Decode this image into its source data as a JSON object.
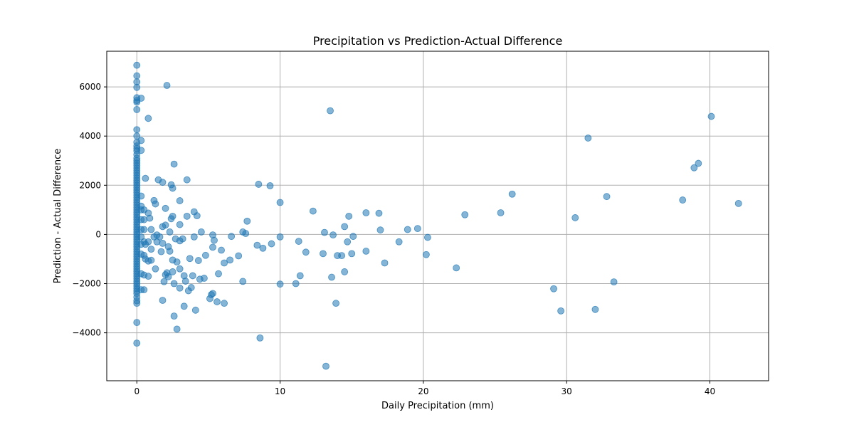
{
  "chart_data": {
    "type": "scatter",
    "title": "Precipitation vs Prediction-Actual Difference",
    "xlabel": "Daily Precipitation (mm)",
    "ylabel": "Prediction - Actual Difference",
    "xlim": [
      -2.1,
      44.1
    ],
    "ylim": [
      -5950,
      7450
    ],
    "xticks": [
      0,
      10,
      20,
      30,
      40
    ],
    "xtick_labels": [
      "0",
      "10",
      "20",
      "30",
      "40"
    ],
    "yticks": [
      -4000,
      -2000,
      0,
      2000,
      4000,
      6000
    ],
    "ytick_labels": [
      "−4000",
      "−2000",
      "0",
      "2000",
      "4000",
      "6000"
    ],
    "grid": true,
    "marker_color": "#1f77b4",
    "marker_alpha": 0.55,
    "series": [
      {
        "points": [
          [
            0,
            6880
          ],
          [
            0,
            6450
          ],
          [
            0,
            6200
          ],
          [
            0,
            5980
          ],
          [
            0,
            5560
          ],
          [
            0,
            5450
          ],
          [
            0,
            5380
          ],
          [
            0,
            5080
          ],
          [
            0,
            4260
          ],
          [
            0,
            4000
          ],
          [
            0,
            3750
          ],
          [
            0,
            3600
          ],
          [
            0,
            3500
          ],
          [
            0,
            3400
          ],
          [
            0,
            3250
          ],
          [
            0,
            3100
          ],
          [
            0,
            3000
          ],
          [
            0,
            2900
          ],
          [
            0,
            2800
          ],
          [
            0,
            2700
          ],
          [
            0,
            2600
          ],
          [
            0,
            2500
          ],
          [
            0,
            2400
          ],
          [
            0,
            2300
          ],
          [
            0,
            2200
          ],
          [
            0,
            2100
          ],
          [
            0,
            2000
          ],
          [
            0,
            1900
          ],
          [
            0,
            1800
          ],
          [
            0,
            1700
          ],
          [
            0,
            1600
          ],
          [
            0,
            1500
          ],
          [
            0,
            1400
          ],
          [
            0,
            1300
          ],
          [
            0,
            1200
          ],
          [
            0,
            1100
          ],
          [
            0,
            1000
          ],
          [
            0,
            900
          ],
          [
            0,
            800
          ],
          [
            0,
            700
          ],
          [
            0,
            600
          ],
          [
            0,
            500
          ],
          [
            0,
            400
          ],
          [
            0,
            300
          ],
          [
            0,
            200
          ],
          [
            0,
            100
          ],
          [
            0,
            0
          ],
          [
            0,
            -100
          ],
          [
            0,
            -200
          ],
          [
            0,
            -300
          ],
          [
            0,
            -400
          ],
          [
            0,
            -500
          ],
          [
            0,
            -600
          ],
          [
            0,
            -700
          ],
          [
            0,
            -800
          ],
          [
            0,
            -900
          ],
          [
            0,
            -1000
          ],
          [
            0,
            -1100
          ],
          [
            0,
            -1200
          ],
          [
            0,
            -1300
          ],
          [
            0,
            -1400
          ],
          [
            0,
            -1500
          ],
          [
            0,
            -1600
          ],
          [
            0,
            -1700
          ],
          [
            0,
            -1800
          ],
          [
            0,
            -1900
          ],
          [
            0,
            -2000
          ],
          [
            0,
            -2100
          ],
          [
            0,
            -2200
          ],
          [
            0,
            -2300
          ],
          [
            0,
            -2400
          ],
          [
            0,
            -2550
          ],
          [
            0,
            -2700
          ],
          [
            0,
            -2800
          ],
          [
            0,
            -3580
          ],
          [
            0,
            -4420
          ],
          [
            0.3,
            5540
          ],
          [
            0.3,
            3820
          ],
          [
            0.3,
            3420
          ],
          [
            0.3,
            1560
          ],
          [
            0.3,
            1150
          ],
          [
            0.3,
            1000
          ],
          [
            0.3,
            600
          ],
          [
            0.3,
            200
          ],
          [
            0.3,
            -100
          ],
          [
            0.3,
            -400
          ],
          [
            0.3,
            -800
          ],
          [
            0.3,
            -1600
          ],
          [
            0.3,
            -2250
          ],
          [
            0.5,
            1000
          ],
          [
            0.5,
            600
          ],
          [
            0.5,
            200
          ],
          [
            0.5,
            -300
          ],
          [
            0.5,
            -850
          ],
          [
            0.5,
            -1650
          ],
          [
            0.5,
            -2250
          ],
          [
            0.6,
            2280
          ],
          [
            0.6,
            -400
          ],
          [
            0.6,
            -1000
          ],
          [
            0.8,
            4720
          ],
          [
            0.8,
            870
          ],
          [
            0.8,
            -300
          ],
          [
            0.8,
            -1080
          ],
          [
            0.8,
            -1700
          ],
          [
            0.9,
            660
          ],
          [
            1.0,
            200
          ],
          [
            1.0,
            -600
          ],
          [
            1.0,
            -1050
          ],
          [
            1.2,
            1380
          ],
          [
            1.2,
            -100
          ],
          [
            1.3,
            1240
          ],
          [
            1.3,
            -1400
          ],
          [
            1.4,
            -300
          ],
          [
            1.4,
            -20
          ],
          [
            1.5,
            2220
          ],
          [
            1.6,
            -100
          ],
          [
            1.7,
            -700
          ],
          [
            1.8,
            2120
          ],
          [
            1.8,
            320
          ],
          [
            1.8,
            -360
          ],
          [
            1.8,
            -2680
          ],
          [
            1.9,
            -1920
          ],
          [
            2.0,
            1060
          ],
          [
            2.0,
            380
          ],
          [
            2.0,
            -1640
          ],
          [
            2.1,
            6060
          ],
          [
            2.1,
            -1560
          ],
          [
            2.2,
            -1720
          ],
          [
            2.2,
            -500
          ],
          [
            2.3,
            -680
          ],
          [
            2.3,
            100
          ],
          [
            2.4,
            640
          ],
          [
            2.4,
            2020
          ],
          [
            2.5,
            1880
          ],
          [
            2.5,
            -1040
          ],
          [
            2.5,
            -1520
          ],
          [
            2.5,
            740
          ],
          [
            2.6,
            2860
          ],
          [
            2.6,
            -2000
          ],
          [
            2.6,
            -3320
          ],
          [
            2.7,
            -180
          ],
          [
            2.8,
            -3850
          ],
          [
            2.8,
            -1120
          ],
          [
            3.0,
            1370
          ],
          [
            3.0,
            400
          ],
          [
            3.0,
            -260
          ],
          [
            3.0,
            -1400
          ],
          [
            3.0,
            -2180
          ],
          [
            3.2,
            -180
          ],
          [
            3.3,
            -1680
          ],
          [
            3.3,
            -2920
          ],
          [
            3.4,
            -1900
          ],
          [
            3.5,
            2220
          ],
          [
            3.5,
            740
          ],
          [
            3.6,
            -2290
          ],
          [
            3.7,
            -980
          ],
          [
            3.8,
            -2160
          ],
          [
            3.9,
            -1680
          ],
          [
            4.0,
            920
          ],
          [
            4.0,
            -100
          ],
          [
            4.1,
            -3080
          ],
          [
            4.2,
            760
          ],
          [
            4.3,
            -1060
          ],
          [
            4.4,
            -1820
          ],
          [
            4.5,
            100
          ],
          [
            4.7,
            -1780
          ],
          [
            4.8,
            -850
          ],
          [
            5.1,
            -2610
          ],
          [
            5.2,
            -2450
          ],
          [
            5.3,
            -2400
          ],
          [
            5.3,
            -520
          ],
          [
            5.3,
            -20
          ],
          [
            5.4,
            -240
          ],
          [
            5.6,
            -2740
          ],
          [
            5.7,
            -1600
          ],
          [
            5.9,
            -640
          ],
          [
            6.1,
            -2800
          ],
          [
            6.1,
            -1160
          ],
          [
            6.5,
            -1040
          ],
          [
            6.6,
            -80
          ],
          [
            7.1,
            -870
          ],
          [
            7.4,
            -1910
          ],
          [
            7.4,
            100
          ],
          [
            7.6,
            40
          ],
          [
            7.7,
            540
          ],
          [
            8.4,
            -440
          ],
          [
            8.5,
            2040
          ],
          [
            8.6,
            -4210
          ],
          [
            8.8,
            -560
          ],
          [
            9.3,
            1980
          ],
          [
            9.4,
            -380
          ],
          [
            10.0,
            1300
          ],
          [
            10.0,
            -100
          ],
          [
            10.0,
            -2020
          ],
          [
            11.1,
            -2000
          ],
          [
            11.3,
            -280
          ],
          [
            11.4,
            -1680
          ],
          [
            11.8,
            -720
          ],
          [
            12.3,
            950
          ],
          [
            13.0,
            -780
          ],
          [
            13.1,
            80
          ],
          [
            13.2,
            -5360
          ],
          [
            13.5,
            5030
          ],
          [
            13.6,
            -1740
          ],
          [
            13.7,
            -20
          ],
          [
            13.9,
            -2800
          ],
          [
            14.0,
            -860
          ],
          [
            14.3,
            -860
          ],
          [
            14.5,
            320
          ],
          [
            14.5,
            -1520
          ],
          [
            14.7,
            -300
          ],
          [
            14.8,
            740
          ],
          [
            15.0,
            -780
          ],
          [
            15.1,
            -80
          ],
          [
            16.0,
            880
          ],
          [
            16.0,
            -680
          ],
          [
            16.9,
            860
          ],
          [
            17.0,
            180
          ],
          [
            17.3,
            -1160
          ],
          [
            18.3,
            -300
          ],
          [
            18.9,
            200
          ],
          [
            19.6,
            240
          ],
          [
            20.2,
            -820
          ],
          [
            20.3,
            -120
          ],
          [
            22.3,
            -1360
          ],
          [
            22.9,
            800
          ],
          [
            25.4,
            880
          ],
          [
            26.2,
            1640
          ],
          [
            29.1,
            -2210
          ],
          [
            29.6,
            -3110
          ],
          [
            30.6,
            680
          ],
          [
            31.5,
            3920
          ],
          [
            32.0,
            -3050
          ],
          [
            32.8,
            1540
          ],
          [
            33.3,
            -1930
          ],
          [
            38.1,
            1400
          ],
          [
            38.9,
            2710
          ],
          [
            39.2,
            2890
          ],
          [
            40.1,
            4800
          ],
          [
            42.0,
            1260
          ]
        ]
      }
    ]
  }
}
